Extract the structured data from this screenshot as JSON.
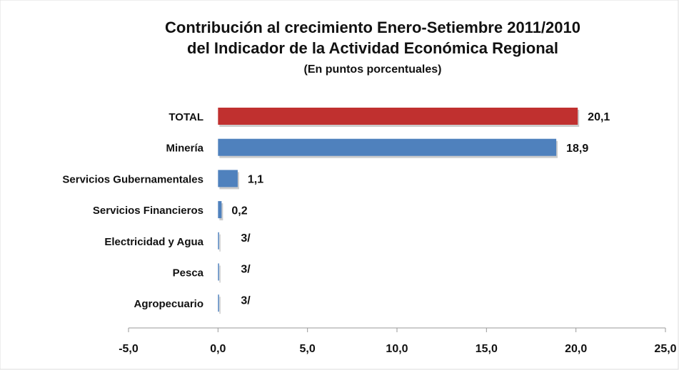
{
  "chart_data": {
    "type": "barh",
    "title": "Contribución al crecimiento Enero-Setiembre 2011/2010",
    "title_line2": "del Indicador de la Actividad Económica Regional",
    "subtitle": "(En puntos porcentuales)",
    "categories": [
      "TOTAL",
      "Minería",
      "Servicios Gubernamentales",
      "Servicios Financieros",
      "Electricidad y Agua",
      "Pesca",
      "Agropecuario"
    ],
    "values": [
      20.1,
      18.9,
      1.1,
      0.2,
      0,
      0,
      0
    ],
    "value_labels": [
      "20,1",
      "18,9",
      "1,1",
      "0,2",
      null,
      null,
      null
    ],
    "notes": [
      null,
      null,
      null,
      null,
      "3/",
      "3/",
      "3/"
    ],
    "colors": [
      "#c0302f",
      "#4f81bd",
      "#4f81bd",
      "#4f81bd",
      "#4f81bd",
      "#4f81bd",
      "#4f81bd"
    ],
    "xlim": [
      -5,
      25
    ],
    "xticks": [
      {
        "value": -5,
        "label": "-5,0"
      },
      {
        "value": 0,
        "label": "0,0"
      },
      {
        "value": 5,
        "label": "5,0"
      },
      {
        "value": 10,
        "label": "10,0"
      },
      {
        "value": 15,
        "label": "15,0"
      },
      {
        "value": 20,
        "label": "20,0"
      },
      {
        "value": 25,
        "label": "25,0"
      }
    ],
    "grid": false
  }
}
